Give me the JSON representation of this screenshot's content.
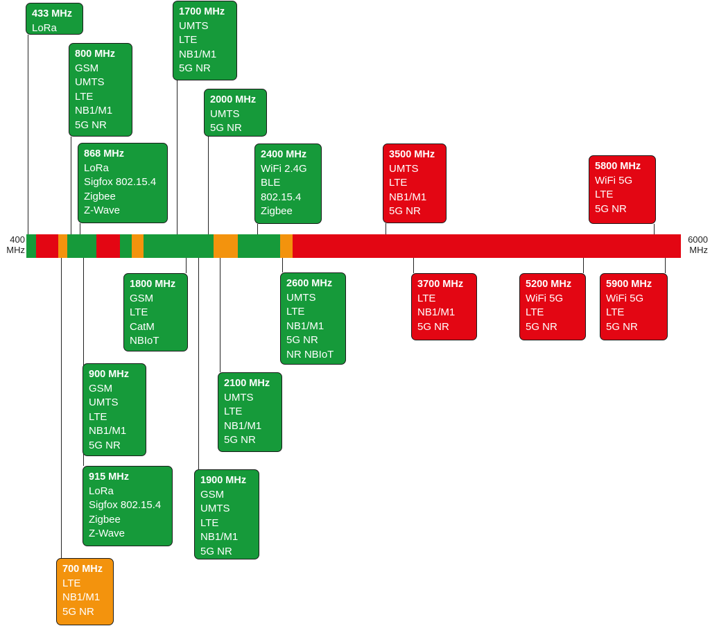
{
  "colors": {
    "green": "#169a3a",
    "orange": "#f3930d",
    "red": "#e30613"
  },
  "axis": {
    "min_label": "400\nMHz",
    "max_label": "6000\nMHz",
    "min_mhz": 400,
    "max_mhz": 6000
  },
  "spectrum_segments": [
    {
      "color": "green",
      "from": 400,
      "to": 483
    },
    {
      "color": "red",
      "from": 483,
      "to": 672
    },
    {
      "color": "orange",
      "from": 672,
      "to": 750
    },
    {
      "color": "green",
      "from": 750,
      "to": 1000
    },
    {
      "color": "red",
      "from": 1000,
      "to": 1200
    },
    {
      "color": "green",
      "from": 1200,
      "to": 1300
    },
    {
      "color": "orange",
      "from": 1300,
      "to": 1400
    },
    {
      "color": "green",
      "from": 1400,
      "to": 2000
    },
    {
      "color": "orange",
      "from": 2000,
      "to": 2210
    },
    {
      "color": "green",
      "from": 2210,
      "to": 2570
    },
    {
      "color": "orange",
      "from": 2570,
      "to": 2680
    },
    {
      "color": "red",
      "from": 2680,
      "to": 6000
    }
  ],
  "bands": [
    {
      "id": "433",
      "label": "433 MHz",
      "color": "green",
      "techs": [
        "LoRa"
      ]
    },
    {
      "id": "800",
      "label": "800 MHz",
      "color": "green",
      "techs": [
        "GSM",
        "UMTS",
        "LTE",
        "NB1/M1",
        "5G NR"
      ]
    },
    {
      "id": "868",
      "label": "868 MHz",
      "color": "green",
      "techs": [
        "LoRa",
        "Sigfox 802.15.4",
        "Zigbee",
        "Z-Wave"
      ]
    },
    {
      "id": "1700",
      "label": "1700 MHz",
      "color": "green",
      "techs": [
        "UMTS",
        "LTE",
        "NB1/M1",
        "5G NR"
      ]
    },
    {
      "id": "2000",
      "label": "2000 MHz",
      "color": "green",
      "techs": [
        "UMTS",
        "5G NR"
      ]
    },
    {
      "id": "2400",
      "label": "2400 MHz",
      "color": "green",
      "techs": [
        "WiFi 2.4G",
        "BLE",
        "802.15.4",
        "Zigbee"
      ]
    },
    {
      "id": "3500",
      "label": "3500 MHz",
      "color": "red",
      "techs": [
        "UMTS",
        "LTE",
        "NB1/M1",
        "5G NR"
      ]
    },
    {
      "id": "5800",
      "label": "5800 MHz",
      "color": "red",
      "techs": [
        "WiFi 5G",
        "LTE",
        "5G NR"
      ]
    },
    {
      "id": "1800",
      "label": "1800 MHz",
      "color": "green",
      "techs": [
        "GSM",
        "LTE",
        "CatM",
        "NBIoT"
      ]
    },
    {
      "id": "2600",
      "label": "2600 MHz",
      "color": "green",
      "techs": [
        "UMTS",
        "LTE",
        "NB1/M1",
        "5G NR",
        "NR NBIoT"
      ]
    },
    {
      "id": "3700",
      "label": "3700 MHz",
      "color": "red",
      "techs": [
        "LTE",
        "NB1/M1",
        "5G NR"
      ]
    },
    {
      "id": "5200",
      "label": "5200 MHz",
      "color": "red",
      "techs": [
        "WiFi 5G",
        "LTE",
        "5G NR"
      ]
    },
    {
      "id": "5900",
      "label": "5900 MHz",
      "color": "red",
      "techs": [
        "WiFi 5G",
        "LTE",
        "5G NR"
      ]
    },
    {
      "id": "900",
      "label": "900 MHz",
      "color": "green",
      "techs": [
        "GSM",
        "UMTS",
        "LTE",
        "NB1/M1",
        "5G NR"
      ]
    },
    {
      "id": "2100",
      "label": "2100 MHz",
      "color": "green",
      "techs": [
        "UMTS",
        "LTE",
        "NB1/M1",
        "5G NR"
      ]
    },
    {
      "id": "915",
      "label": "915 MHz",
      "color": "green",
      "techs": [
        "LoRa",
        "Sigfox 802.15.4",
        "Zigbee",
        "Z-Wave"
      ]
    },
    {
      "id": "1900",
      "label": "1900 MHz",
      "color": "green",
      "techs": [
        "GSM",
        "UMTS",
        "LTE",
        "NB1/M1",
        "5G NR"
      ]
    },
    {
      "id": "700",
      "label": "700 MHz",
      "color": "orange",
      "techs": [
        "LTE",
        "NB1/M1",
        "5G NR"
      ]
    }
  ]
}
